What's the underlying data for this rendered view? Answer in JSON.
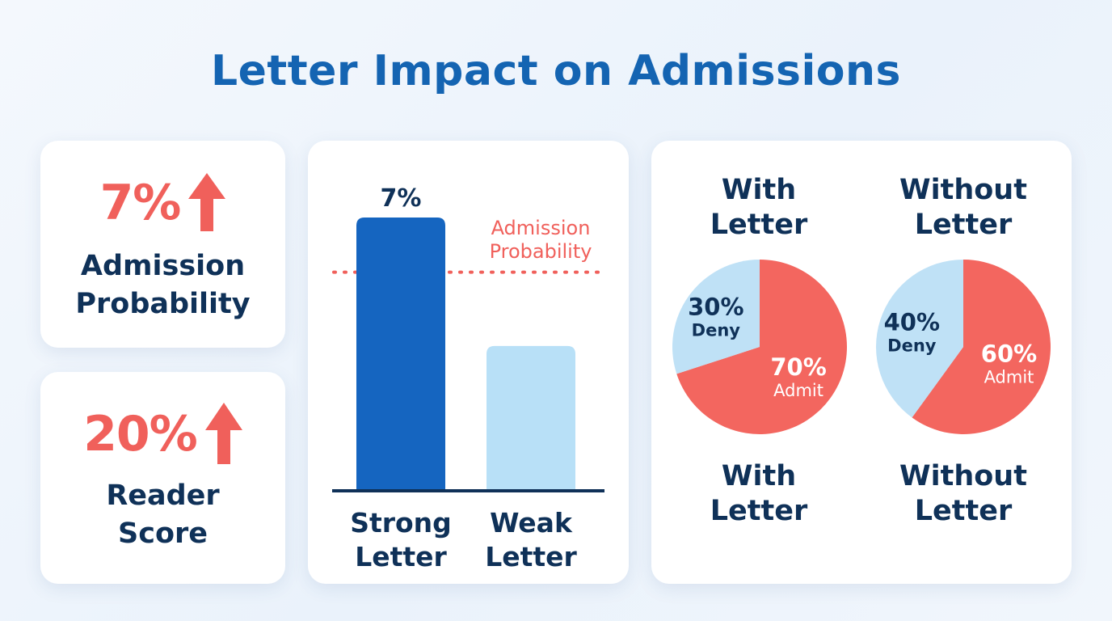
{
  "title": "Letter Impact on Admissions",
  "stats": [
    {
      "value": "7%",
      "label_lines": [
        "Admission",
        "Probability"
      ],
      "trend": "up"
    },
    {
      "value": "20%",
      "label_lines": [
        "Reader",
        "Score"
      ],
      "trend": "up"
    }
  ],
  "colors": {
    "title": "#1464b2",
    "accent_red": "#f0605b",
    "dark_navy": "#0f3158",
    "strong_bar": "#1565c0",
    "weak_bar": "#b8e0f7",
    "pie_deny": "#bfe1f6",
    "pie_admit": "#f3665f"
  },
  "chart_data": [
    {
      "type": "bar",
      "categories": [
        [
          "Strong",
          "Letter"
        ],
        [
          "Weak",
          "Letter"
        ]
      ],
      "values": [
        100,
        53
      ],
      "value_labels": [
        "7%",
        ""
      ],
      "reference_line": {
        "value": 80,
        "label_lines": [
          "Admission",
          "Probability"
        ],
        "style": "dotted"
      },
      "ylim": [
        0,
        100
      ],
      "grid": false
    },
    {
      "type": "pie",
      "title_lines": [
        "With",
        "Letter"
      ],
      "caption_lines": [
        "With",
        "Letter"
      ],
      "slices": [
        {
          "name": "Admit",
          "value": 70,
          "label": "70%"
        },
        {
          "name": "Deny",
          "value": 30,
          "label": "30%"
        }
      ]
    },
    {
      "type": "pie",
      "title_lines": [
        "Without",
        "Letter"
      ],
      "caption_lines": [
        "Without",
        "Letter"
      ],
      "slices": [
        {
          "name": "Admit",
          "value": 60,
          "label": "60%"
        },
        {
          "name": "Deny",
          "value": 40,
          "label": "40%"
        }
      ]
    }
  ]
}
